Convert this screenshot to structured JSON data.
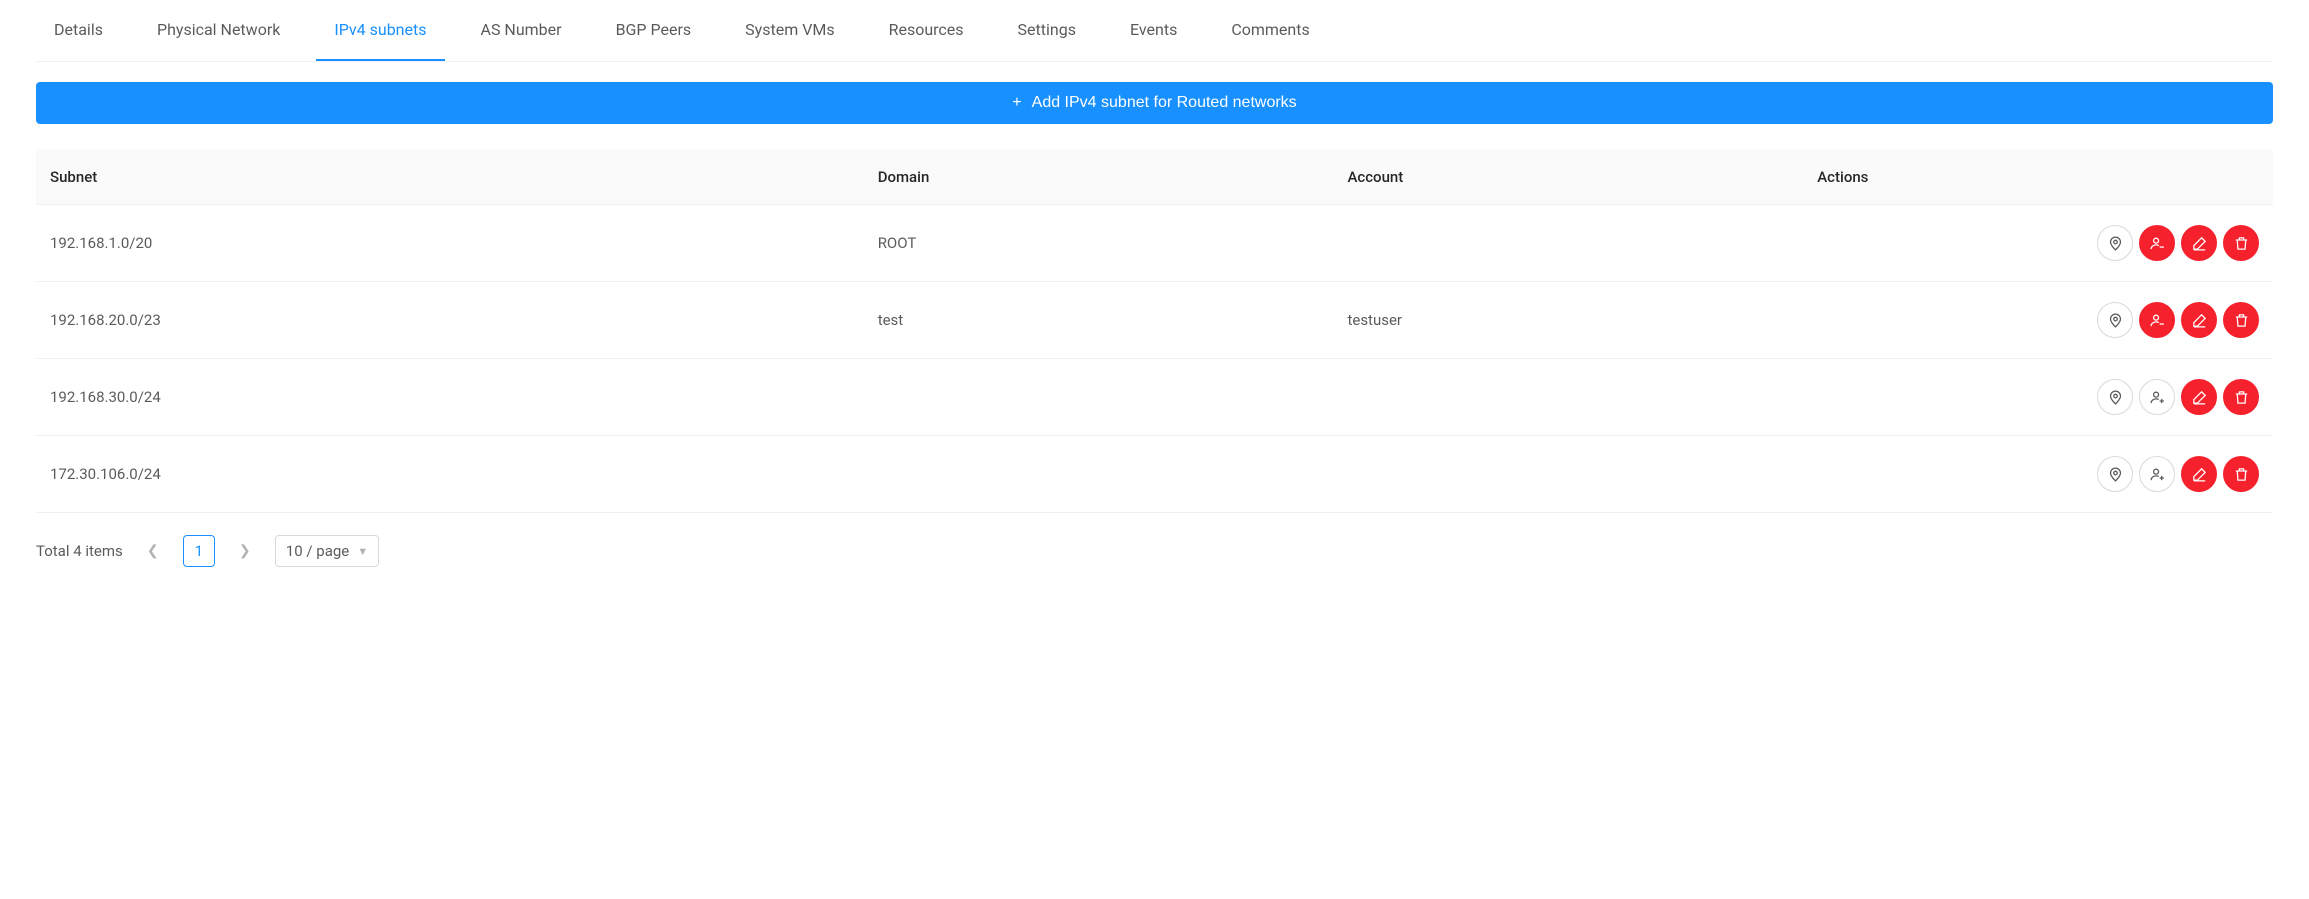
{
  "tabs": [
    {
      "label": "Details",
      "active": false
    },
    {
      "label": "Physical Network",
      "active": false
    },
    {
      "label": "IPv4 subnets",
      "active": true
    },
    {
      "label": "AS Number",
      "active": false
    },
    {
      "label": "BGP Peers",
      "active": false
    },
    {
      "label": "System VMs",
      "active": false
    },
    {
      "label": "Resources",
      "active": false
    },
    {
      "label": "Settings",
      "active": false
    },
    {
      "label": "Events",
      "active": false
    },
    {
      "label": "Comments",
      "active": false
    }
  ],
  "add_button_label": "Add IPv4 subnet for Routed networks",
  "table": {
    "columns": [
      "Subnet",
      "Domain",
      "Account",
      "Actions"
    ],
    "rows": [
      {
        "subnet": "192.168.1.0/20",
        "domain": "ROOT",
        "account": "",
        "user_action_red": true
      },
      {
        "subnet": "192.168.20.0/23",
        "domain": "test",
        "account": "testuser",
        "user_action_red": true
      },
      {
        "subnet": "192.168.30.0/24",
        "domain": "",
        "account": "",
        "user_action_red": false
      },
      {
        "subnet": "172.30.106.0/24",
        "domain": "",
        "account": "",
        "user_action_red": false
      }
    ]
  },
  "pagination": {
    "total_label": "Total 4 items",
    "current_page": "1",
    "page_size_label": "10 / page"
  },
  "colors": {
    "accent": "#1890ff",
    "danger": "#f5222d",
    "border": "#f0f0f0",
    "header_bg": "#fafafa",
    "text": "rgba(0,0,0,0.85)",
    "text_secondary": "rgba(0,0,0,0.65)"
  },
  "action_icons": [
    "location",
    "user",
    "edit",
    "delete"
  ]
}
